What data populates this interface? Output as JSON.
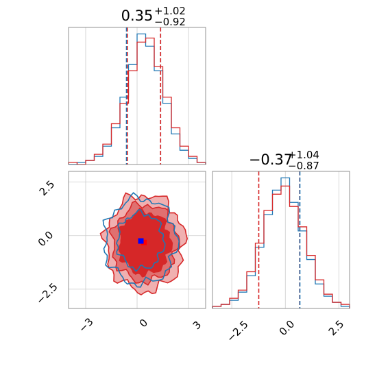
{
  "chart_data": [
    {
      "type": "histogram",
      "panel": "marginal-param-1",
      "title": {
        "median": "0.35",
        "upper": "+1.02",
        "lower": "−0.92"
      },
      "xlim": [
        -4,
        4
      ],
      "grid": true,
      "series": [
        {
          "color": "#1f77b4",
          "bin_edges": [
            -4.0,
            -3.5,
            -3.0,
            -2.5,
            -2.0,
            -1.5,
            -1.0,
            -0.5,
            0.0,
            0.5,
            1.0,
            1.5,
            2.0,
            2.5,
            3.0,
            3.5,
            4.0
          ],
          "counts": [
            0,
            1,
            2,
            4,
            9,
            18,
            33,
            49,
            64,
            58,
            46,
            30,
            15,
            7,
            3,
            1
          ]
        },
        {
          "color": "#d62728",
          "bin_edges": [
            -4.0,
            -3.5,
            -3.0,
            -2.5,
            -2.0,
            -1.5,
            -1.0,
            -0.5,
            0.0,
            0.5,
            1.0,
            1.5,
            2.0,
            2.5,
            3.0,
            3.5,
            4.0
          ],
          "counts": [
            1,
            0,
            2,
            5,
            10,
            20,
            30,
            46,
            60,
            62,
            48,
            33,
            18,
            9,
            4,
            1
          ]
        }
      ],
      "quantile_lines": [
        {
          "color": "#1f77b4",
          "values": [
            -0.62,
            1.37
          ]
        },
        {
          "color": "#d62728",
          "values": [
            -0.57,
            1.37
          ]
        }
      ]
    },
    {
      "type": "histogram",
      "panel": "marginal-param-2",
      "title": {
        "median": "−0.37",
        "upper": "+1.04",
        "lower": "−0.87"
      },
      "xlim": [
        -3.4,
        3.0
      ],
      "xticks": [
        "−2.5",
        "0.0",
        "2.5"
      ],
      "grid": true,
      "series": [
        {
          "color": "#1f77b4",
          "bin_edges": [
            -3.4,
            -3.0,
            -2.6,
            -2.2,
            -1.8,
            -1.4,
            -1.0,
            -0.6,
            -0.2,
            0.2,
            0.6,
            1.0,
            1.4,
            1.8,
            2.2,
            2.6,
            3.0
          ],
          "counts": [
            1,
            2,
            4,
            8,
            16,
            30,
            46,
            58,
            64,
            52,
            38,
            24,
            12,
            6,
            3,
            1
          ]
        },
        {
          "color": "#d62728",
          "bin_edges": [
            -3.4,
            -3.0,
            -2.6,
            -2.2,
            -1.8,
            -1.4,
            -1.0,
            -0.6,
            -0.2,
            0.2,
            0.6,
            1.0,
            1.4,
            1.8,
            2.2,
            2.6,
            3.0
          ],
          "counts": [
            1,
            2,
            5,
            9,
            18,
            32,
            48,
            56,
            60,
            50,
            40,
            26,
            14,
            7,
            3,
            2
          ]
        }
      ],
      "quantile_lines": [
        {
          "color": "#d62728",
          "values": [
            -1.24,
            0.67
          ]
        },
        {
          "color": "#1f77b4",
          "values": [
            0.68
          ]
        }
      ]
    },
    {
      "type": "contour",
      "panel": "joint-2d",
      "xlim": [
        -4,
        4
      ],
      "ylim": [
        -3.4,
        3.0
      ],
      "xticks": [
        "−3",
        "0",
        "3"
      ],
      "yticks": [
        "−2.5",
        "0.0",
        "2.5"
      ],
      "grid": true,
      "series": [
        {
          "color": "#d62728",
          "center": [
            0.45,
            -0.35
          ],
          "levels": [
            {
              "r": [
                2.3,
                2.25
              ],
              "fill": "#f0b0b0"
            },
            {
              "r": [
                1.9,
                1.8
              ],
              "fill": "#e07070"
            },
            {
              "r": [
                1.5,
                1.45
              ],
              "fill": "#d62728"
            }
          ]
        },
        {
          "color": "#1f77b4",
          "center": [
            0.2,
            -0.25
          ],
          "levels": [
            {
              "r": [
                2.1,
                2.0
              ]
            },
            {
              "r": [
                1.35,
                1.3
              ]
            }
          ]
        }
      ],
      "markers": [
        {
          "color": "#ff0000",
          "x": 0.4,
          "y": -0.32
        },
        {
          "color": "#0000ff",
          "x": 0.22,
          "y": -0.25
        }
      ]
    }
  ]
}
